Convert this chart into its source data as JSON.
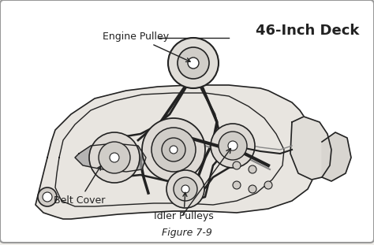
{
  "title_text": "46-Inch Deck",
  "figure_label": "Figure 7-9",
  "label_engine_pulley": "Engine Pulley",
  "label_belt_cover": "Belt Cover",
  "label_idler_pulleys": "Idler Pulleys",
  "bg_color": "#f0eeea",
  "border_color": "#888888",
  "line_color": "#222222",
  "light_line_color": "#555555",
  "fill_color": "#d8d5cf",
  "title_fontsize": 13,
  "label_fontsize": 9,
  "fig_label_fontsize": 9,
  "figsize": [
    4.74,
    3.11
  ],
  "dpi": 100
}
